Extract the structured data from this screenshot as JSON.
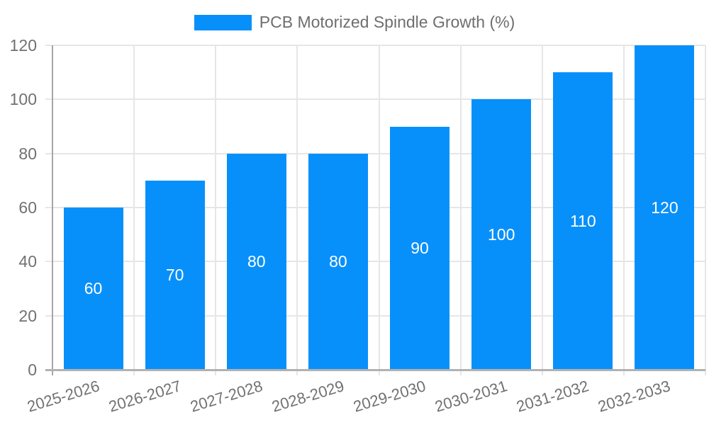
{
  "legend": {
    "label": "PCB Motorized Spindle Growth (%)"
  },
  "chart_data": {
    "type": "bar",
    "title": "PCB Motorized Spindle Growth (%)",
    "series": [
      {
        "name": "PCB Motorized Spindle Growth (%)",
        "values": [
          60,
          70,
          80,
          80,
          90,
          100,
          110,
          120
        ]
      }
    ],
    "categories": [
      "2025-2026",
      "2026-2027",
      "2027-2028",
      "2028-2029",
      "2029-2030",
      "2030-2031",
      "2031-2032",
      "2032-2033"
    ],
    "value_labels": [
      "60",
      "70",
      "80",
      "80",
      "90",
      "100",
      "110",
      "120"
    ],
    "xlabel": "",
    "ylabel": "",
    "ylim": [
      0,
      120
    ],
    "yticks": [
      0,
      20,
      40,
      60,
      80,
      100,
      120
    ],
    "grid": true,
    "legend_position": "top",
    "colors": {
      "bar": "#0890fa",
      "bar_value_label": "#ffffff",
      "axis_text": "#717171",
      "gridline": "#e6e6e6",
      "axis_line": "#b2b2b2"
    }
  }
}
